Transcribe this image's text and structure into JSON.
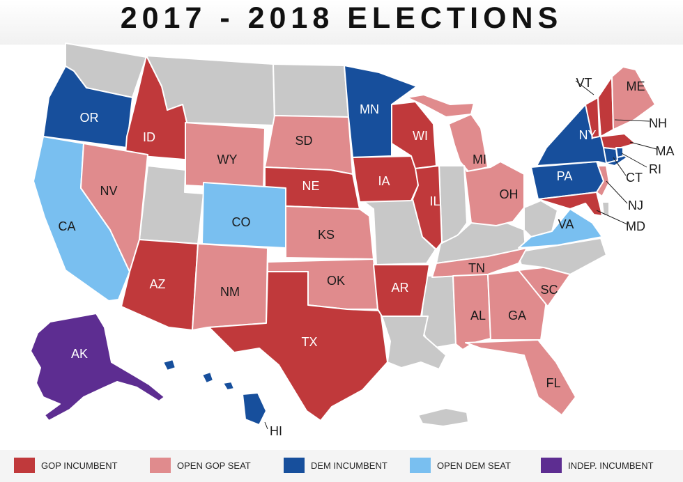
{
  "title": "2017 - 2018 ELECTIONS",
  "colors": {
    "gop_incumbent": "#c0393b",
    "open_gop_seat": "#e08b8d",
    "dem_incumbent": "#174f9c",
    "open_dem_seat": "#79bff0",
    "indep_incumbent": "#5d2d91",
    "no_election": "#c8c8c8"
  },
  "legend": [
    {
      "key": "gop_incumbent",
      "label": "GOP INCUMBENT"
    },
    {
      "key": "open_gop_seat",
      "label": "OPEN GOP SEAT"
    },
    {
      "key": "dem_incumbent",
      "label": "DEM INCUMBENT"
    },
    {
      "key": "open_dem_seat",
      "label": "OPEN DEM SEAT"
    },
    {
      "key": "indep_incumbent",
      "label": "INDEP. INCUMBENT"
    }
  ],
  "states": [
    {
      "abbr": "OR",
      "status": "dem_incumbent"
    },
    {
      "abbr": "ID",
      "status": "gop_incumbent"
    },
    {
      "abbr": "WY",
      "status": "open_gop_seat"
    },
    {
      "abbr": "SD",
      "status": "open_gop_seat"
    },
    {
      "abbr": "NE",
      "status": "gop_incumbent"
    },
    {
      "abbr": "MN",
      "status": "dem_incumbent"
    },
    {
      "abbr": "IA",
      "status": "gop_incumbent"
    },
    {
      "abbr": "WI",
      "status": "gop_incumbent"
    },
    {
      "abbr": "IL",
      "status": "gop_incumbent"
    },
    {
      "abbr": "MI",
      "status": "open_gop_seat"
    },
    {
      "abbr": "OH",
      "status": "open_gop_seat"
    },
    {
      "abbr": "CA",
      "status": "open_dem_seat"
    },
    {
      "abbr": "NV",
      "status": "open_gop_seat"
    },
    {
      "abbr": "CO",
      "status": "open_dem_seat"
    },
    {
      "abbr": "KS",
      "status": "open_gop_seat"
    },
    {
      "abbr": "AZ",
      "status": "gop_incumbent"
    },
    {
      "abbr": "NM",
      "status": "open_gop_seat"
    },
    {
      "abbr": "OK",
      "status": "open_gop_seat"
    },
    {
      "abbr": "TX",
      "status": "gop_incumbent"
    },
    {
      "abbr": "AR",
      "status": "gop_incumbent"
    },
    {
      "abbr": "TN",
      "status": "open_gop_seat"
    },
    {
      "abbr": "AL",
      "status": "open_gop_seat"
    },
    {
      "abbr": "GA",
      "status": "open_gop_seat"
    },
    {
      "abbr": "SC",
      "status": "open_gop_seat"
    },
    {
      "abbr": "FL",
      "status": "open_gop_seat"
    },
    {
      "abbr": "VA",
      "status": "open_dem_seat"
    },
    {
      "abbr": "PA",
      "status": "dem_incumbent"
    },
    {
      "abbr": "NY",
      "status": "dem_incumbent"
    },
    {
      "abbr": "VT",
      "status": "gop_incumbent"
    },
    {
      "abbr": "NH",
      "status": "gop_incumbent"
    },
    {
      "abbr": "MA",
      "status": "gop_incumbent"
    },
    {
      "abbr": "ME",
      "status": "open_gop_seat"
    },
    {
      "abbr": "CT",
      "status": "dem_incumbent"
    },
    {
      "abbr": "RI",
      "status": "dem_incumbent"
    },
    {
      "abbr": "NJ",
      "status": "open_gop_seat"
    },
    {
      "abbr": "MD",
      "status": "gop_incumbent"
    },
    {
      "abbr": "AK",
      "status": "indep_incumbent"
    },
    {
      "abbr": "HI",
      "status": "dem_incumbent"
    }
  ]
}
